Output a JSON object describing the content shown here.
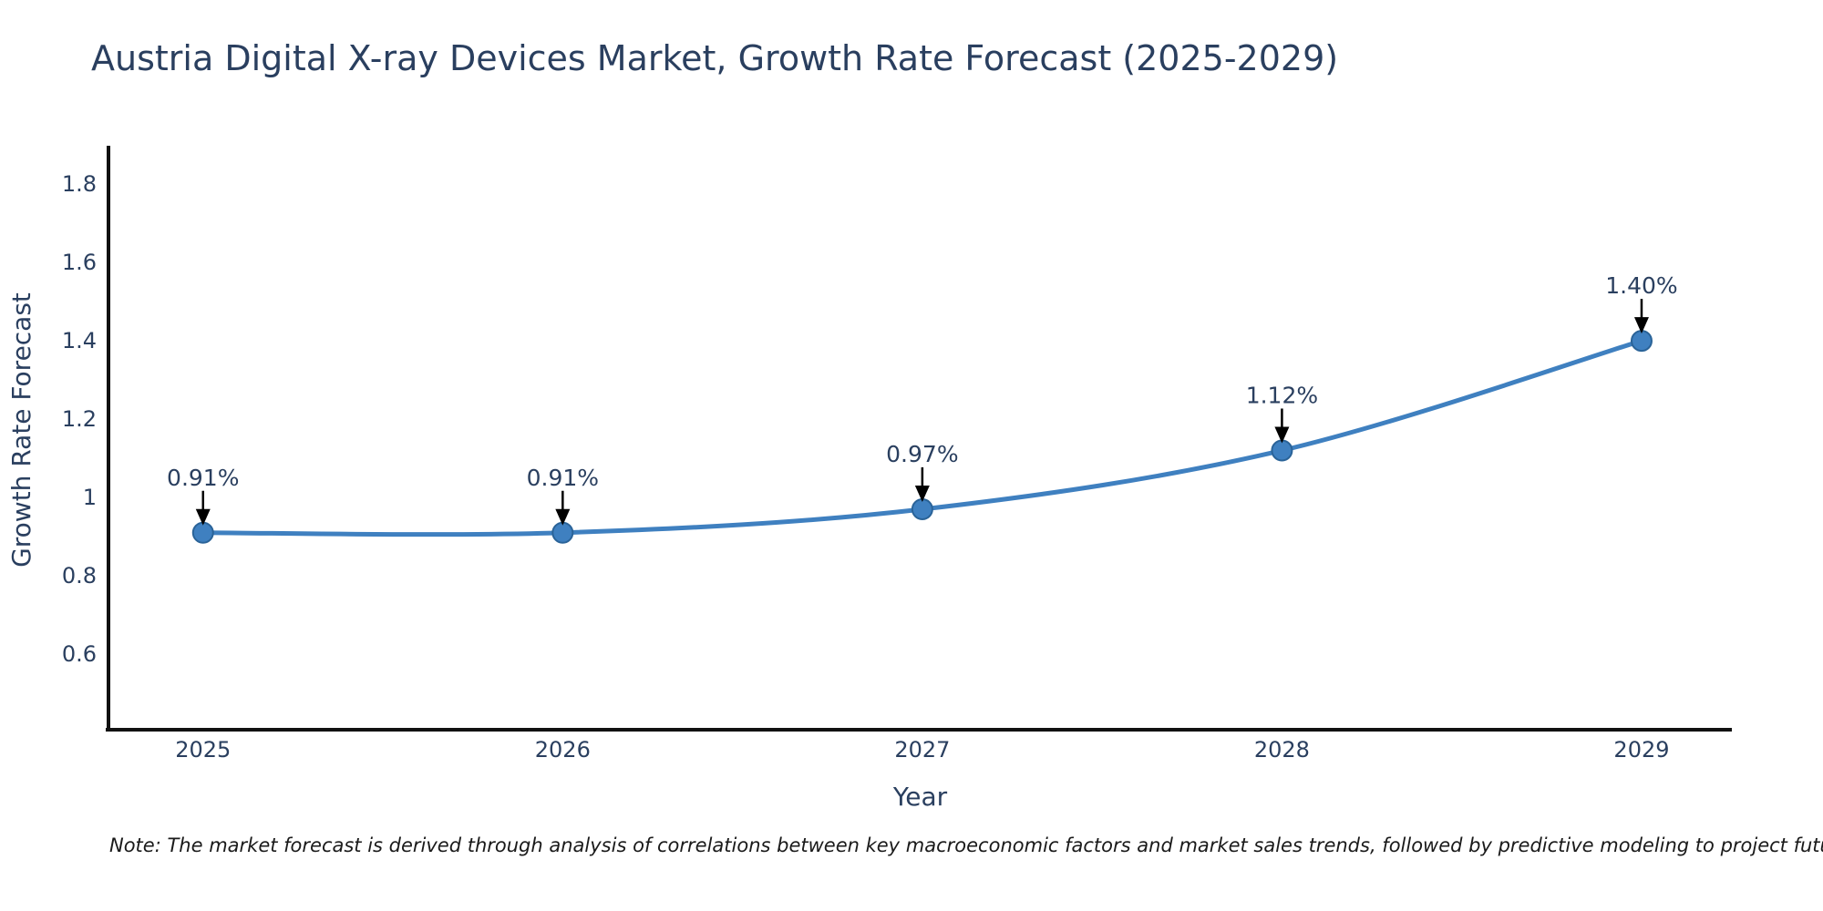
{
  "chart_data": {
    "type": "line",
    "title": "Austria Digital X-ray Devices Market, Growth Rate Forecast (2025-2029)",
    "xlabel": "Year",
    "ylabel": "Growth Rate Forecast",
    "x": [
      2025,
      2026,
      2027,
      2028,
      2029
    ],
    "values": [
      0.91,
      0.91,
      0.97,
      1.12,
      1.4
    ],
    "point_labels": [
      "0.91%",
      "0.91%",
      "0.97%",
      "1.12%",
      "1.40%"
    ],
    "x_tick_labels": [
      "2025",
      "2026",
      "2027",
      "2028",
      "2029"
    ],
    "y_ticks": [
      0.6,
      0.8,
      1,
      1.2,
      1.4,
      1.6,
      1.8
    ],
    "y_tick_labels": [
      "0.6",
      "0.8",
      "1",
      "1.2",
      "1.4",
      "1.6",
      "1.8"
    ],
    "xlim": [
      2024.737,
      2029.251
    ],
    "ylim": [
      0.407,
      1.898
    ],
    "grid": false,
    "legend": "none",
    "line_color": "#3f80c0",
    "marker_color": "#3f80c0",
    "marker_edge_color": "#2a6398",
    "axis_color": "#111111",
    "text_color": "#2a3f5f",
    "arrow_color": "#000000"
  },
  "footnote": {
    "text": "Note: The market forecast is derived through analysis of correlations between key macroeconomic factors and market sales trends, followed by predictive modeling to project future sales"
  }
}
